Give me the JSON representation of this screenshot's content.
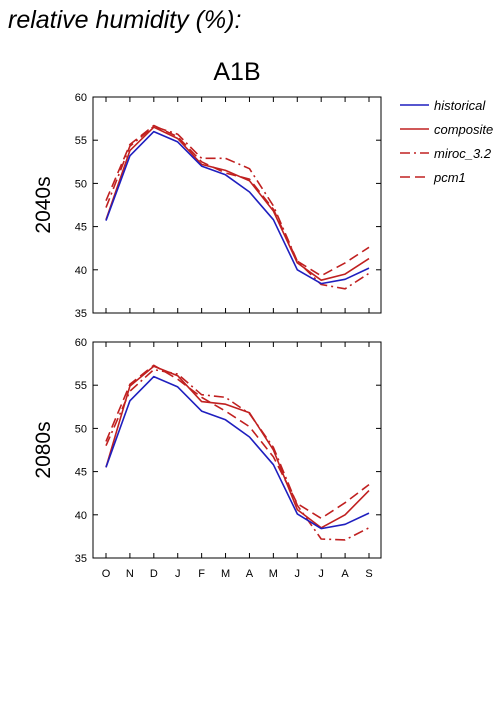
{
  "title": "relative humidity (%):",
  "scenario": "A1B",
  "chart_data": {
    "type": "line",
    "categories": [
      "O",
      "N",
      "D",
      "J",
      "F",
      "M",
      "A",
      "M",
      "J",
      "J",
      "A",
      "S"
    ],
    "ylim": [
      35,
      60
    ],
    "yticks": [
      35,
      40,
      45,
      50,
      55,
      60
    ],
    "legend_position": "right",
    "legend": [
      {
        "name": "historical",
        "color": "#1f1fbf",
        "dash": "solid"
      },
      {
        "name": "composite",
        "color": "#c02020",
        "dash": "solid"
      },
      {
        "name": "miroc_3.2",
        "color": "#c02020",
        "dash": "dashdot"
      },
      {
        "name": "pcm1",
        "color": "#c02020",
        "dash": "dashed"
      }
    ],
    "panels": [
      {
        "label": "2040s",
        "series": [
          {
            "name": "historical",
            "values": [
              45.7,
              53.2,
              56.0,
              54.8,
              52.0,
              51.0,
              49.0,
              45.8,
              40.0,
              38.4,
              38.9,
              40.2
            ]
          },
          {
            "name": "composite",
            "values": [
              45.8,
              53.8,
              56.5,
              55.2,
              52.2,
              51.5,
              50.3,
              46.8,
              40.8,
              38.8,
              39.5,
              41.3
            ]
          },
          {
            "name": "miroc_3.2",
            "values": [
              47.2,
              54.3,
              56.6,
              55.7,
              52.9,
              52.9,
              51.7,
              47.4,
              41.0,
              38.3,
              37.8,
              39.6
            ]
          },
          {
            "name": "pcm1",
            "values": [
              48.0,
              54.5,
              56.7,
              55.4,
              52.5,
              51.2,
              50.5,
              47.0,
              41.0,
              39.3,
              40.8,
              42.6
            ]
          }
        ]
      },
      {
        "label": "2080s",
        "series": [
          {
            "name": "historical",
            "values": [
              45.5,
              53.2,
              56.0,
              54.8,
              52.0,
              51.0,
              49.0,
              45.8,
              40.1,
              38.4,
              38.9,
              40.2
            ]
          },
          {
            "name": "composite",
            "values": [
              45.5,
              54.9,
              57.2,
              56.1,
              53.1,
              52.8,
              51.8,
              47.5,
              40.6,
              38.5,
              40.0,
              42.8
            ]
          },
          {
            "name": "miroc_3.2",
            "values": [
              48.0,
              54.3,
              56.8,
              56.3,
              53.9,
              53.6,
              51.7,
              47.8,
              41.1,
              37.2,
              37.1,
              38.5
            ]
          },
          {
            "name": "pcm1",
            "values": [
              48.5,
              55.1,
              57.3,
              55.7,
              53.6,
              52.0,
              50.2,
              46.7,
              41.3,
              39.6,
              41.4,
              43.5
            ]
          }
        ]
      }
    ]
  }
}
